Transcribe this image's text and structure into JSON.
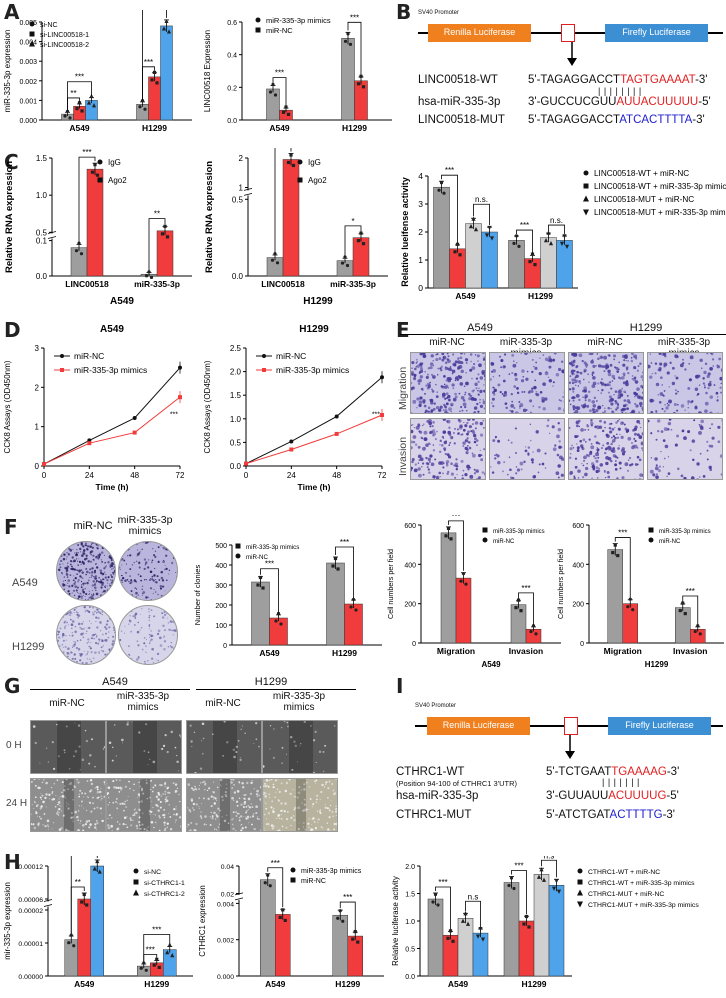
{
  "colors": {
    "gray": "#9e9e9e",
    "red": "#f03c3c",
    "blue": "#4ea3ea",
    "lightgray": "#d0d0d0",
    "black": "#111111",
    "renilla": "#f07f1e",
    "firefly": "#3d8fd3"
  },
  "panel_labels": {
    "A": "A",
    "B": "B",
    "C": "C",
    "D": "D",
    "E": "E",
    "F": "F",
    "G": "G",
    "H": "H",
    "I": "I"
  },
  "panelB": {
    "promoter": "SV40 Promoter",
    "renilla": "Renilla Luciferase",
    "firefly": "Firefly Luciferase",
    "seqs": [
      {
        "name": "LINC00518-WT",
        "pre": "5'-TAGAGGACCT",
        "hl": "TAGTGAAAAT",
        "post": "-3'",
        "hlcolor": "#e02020"
      },
      {
        "name": "hsa-miR-335-3p",
        "pre": "3'-GUCCUCGUU",
        "hl": "AUUACUUUUU",
        "post": "-5'",
        "hlcolor": "#e02020"
      },
      {
        "name": "LINC00518-MUT",
        "pre": "5'-TAGAGGACCT",
        "hl": "ATCACTTTTA",
        "post": "-3'",
        "hlcolor": "#2020d0"
      }
    ],
    "pairs": "| |  | | | | | |"
  },
  "panelI": {
    "promoter": "SV40 Promoter",
    "renilla": "Renilla Luciferase",
    "firefly": "Firefly Luciferase",
    "seqs": [
      {
        "name": "CTHRC1-WT",
        "pre": "5'-TCTGAAT",
        "hl": "TGAAAAG",
        "post": "-3'",
        "hlcolor": "#e02020"
      },
      {
        "name": "hsa-miR-335-3p",
        "pre": "3'-GUUAUU",
        "hl": "ACUUUUG",
        "post": "-5'",
        "hlcolor": "#e02020"
      },
      {
        "name": "CTHRC1-MUT",
        "pre": "5'-ATCTGAT",
        "hl": "ACTTTTG",
        "post": "-3'",
        "hlcolor": "#2020d0"
      }
    ],
    "subnote": "(Position 94-100 of CTHRC1 3'UTR)",
    "pairs": "| | | | | | |"
  },
  "panelE": {
    "headers": [
      "A549",
      "H1299"
    ],
    "sub": [
      "miR-NC",
      "miR-335-3p mimics",
      "miR-NC",
      "miR-335-3p mimics"
    ],
    "rows": [
      "Migration",
      "Invasion"
    ]
  },
  "panelF": {
    "headers": [
      "miR-NC",
      "miR-335-3p\nmimics"
    ],
    "rows": [
      "A549",
      "H1299"
    ]
  },
  "panelG": {
    "headers": [
      "A549",
      "H1299"
    ],
    "sub": [
      "miR-NC",
      "miR-335-3p\nmimics",
      "miR-NC",
      "miR-335-3p\nmimics"
    ],
    "rows": [
      "0 H",
      "24 H"
    ]
  },
  "chart_data": [
    {
      "id": "A1",
      "type": "bar",
      "ylabel": "miR-335-3p expression",
      "categories": [
        "A549",
        "H1299"
      ],
      "ylim": [
        0,
        0.005
      ],
      "yticks": [
        "0.000",
        "0.001",
        "0.002",
        "0.003",
        "0.004",
        "0.005"
      ],
      "series": [
        {
          "name": "si-NC",
          "values": [
            0.0003,
            0.0008
          ]
        },
        {
          "name": "si-LINC00518-1",
          "values": [
            0.0007,
            0.0022
          ]
        },
        {
          "name": "si-LINC00518-2",
          "values": [
            0.001,
            0.0048
          ]
        }
      ],
      "sig": [
        {
          "label": "**"
        },
        {
          "label": "***"
        },
        {
          "label": "***"
        },
        {
          "label": "***"
        }
      ]
    },
    {
      "id": "A2",
      "type": "bar",
      "ylabel": "LINC00518 Expression",
      "categories": [
        "A549",
        "H1299"
      ],
      "ylim": [
        0,
        0.6
      ],
      "yticks": [
        "0.0",
        "0.2",
        "0.4",
        "0.6"
      ],
      "series": [
        {
          "name": "miR-335-3p mimics",
          "values": [
            0.19,
            0.5
          ]
        },
        {
          "name": "miR-NC",
          "values": [
            0.06,
            0.24
          ]
        }
      ],
      "sig": [
        {
          "label": "***"
        },
        {
          "label": "***"
        }
      ]
    },
    {
      "id": "C1",
      "type": "bar",
      "ylabel": "Relative RNA expression",
      "title": "A549",
      "categories": [
        "LINC00518",
        "miR-335-3p"
      ],
      "yticks": [
        "0.0",
        "0.1",
        "0.5",
        "1.0",
        "1.5"
      ],
      "series": [
        {
          "name": "IgG",
          "values": [
            0.08,
            0.005
          ]
        },
        {
          "name": "Ago2",
          "values": [
            1.35,
            0.52
          ]
        }
      ],
      "sig": [
        {
          "label": "***"
        },
        {
          "label": "**"
        }
      ]
    },
    {
      "id": "C2",
      "type": "bar",
      "ylabel": "Relative RNA expression",
      "title": "H1299",
      "categories": [
        "LINC00518",
        "miR-335-3p"
      ],
      "yticks": [
        "0.0",
        "0.5",
        "1",
        "2"
      ],
      "series": [
        {
          "name": "IgG",
          "values": [
            0.12,
            0.1
          ]
        },
        {
          "name": "Ago2",
          "values": [
            1.95,
            0.25
          ]
        }
      ],
      "sig": [
        {
          "label": "***"
        },
        {
          "label": "*"
        }
      ]
    },
    {
      "id": "B2",
      "type": "bar",
      "ylabel": "Relative lueifense activity",
      "categories": [
        "A549",
        "H1299"
      ],
      "ylim": [
        0,
        4
      ],
      "yticks": [
        "0",
        "1",
        "2",
        "3",
        "4"
      ],
      "series": [
        {
          "name": "LINC00518-WT + miR-NC",
          "values": [
            3.6,
            1.7
          ]
        },
        {
          "name": "LINC00518-WT + miR-335-3p mimics",
          "values": [
            1.4,
            1.05
          ]
        },
        {
          "name": "LINC00518-MUT + miR-NC",
          "values": [
            2.3,
            1.8
          ]
        },
        {
          "name": "LINC00518-MUT + miR-335-3p mimics",
          "values": [
            2.0,
            1.7
          ]
        }
      ],
      "sig": [
        {
          "label": "***"
        },
        {
          "label": "n.s."
        },
        {
          "label": "***"
        },
        {
          "label": "n.s."
        }
      ]
    },
    {
      "id": "D1",
      "type": "line",
      "title": "A549",
      "ylabel": "CCK8 Assays (OD450nm)",
      "xlabel": "Time (h)",
      "x": [
        0,
        24,
        48,
        72
      ],
      "ylim": [
        0,
        3
      ],
      "yticks": [
        "0",
        "1",
        "2",
        "3"
      ],
      "xticks": [
        "0",
        "24",
        "48",
        "72"
      ],
      "series": [
        {
          "name": "miR-NC",
          "values": [
            0.05,
            0.65,
            1.22,
            2.5
          ]
        },
        {
          "name": "miR-335-3p mimics",
          "values": [
            0.05,
            0.58,
            0.85,
            1.75
          ]
        }
      ],
      "sig": "***"
    },
    {
      "id": "D2",
      "type": "line",
      "title": "H1299",
      "ylabel": "CCK8 Assays (OD450nm)",
      "xlabel": "Time (h)",
      "x": [
        0,
        24,
        48,
        72
      ],
      "ylim": [
        0,
        2.5
      ],
      "yticks": [
        "0.0",
        "0.5",
        "1.0",
        "1.5",
        "2.0",
        "2.5"
      ],
      "xticks": [
        "0",
        "24",
        "48",
        "72"
      ],
      "series": [
        {
          "name": "miR-NC",
          "values": [
            0.05,
            0.52,
            1.05,
            1.88
          ]
        },
        {
          "name": "miR-335-3p mimics",
          "values": [
            0.05,
            0.35,
            0.68,
            1.08
          ]
        }
      ],
      "sig": "***"
    },
    {
      "id": "F1",
      "type": "bar",
      "ylabel": "Number of clonies",
      "categories": [
        "A549",
        "H1299"
      ],
      "ylim": [
        0,
        500
      ],
      "yticks": [
        "0",
        "100",
        "200",
        "300",
        "400",
        "500"
      ],
      "series": [
        {
          "name": "miR-335-3p mimics",
          "values": [
            315,
            410
          ]
        },
        {
          "name": "miR-NC",
          "values": [
            135,
            205
          ]
        }
      ],
      "sig": [
        {
          "label": "***"
        },
        {
          "label": "***"
        }
      ]
    },
    {
      "id": "F2",
      "type": "bar",
      "ylabel": "Cell numbers per field",
      "xtitle": "A549",
      "categories": [
        "Migration",
        "Invasion"
      ],
      "ylim": [
        0,
        600
      ],
      "yticks": [
        "0",
        "200",
        "400",
        "600"
      ],
      "series": [
        {
          "name": "miR-335-3p mimics",
          "values": [
            560,
            195
          ]
        },
        {
          "name": "miR-NC",
          "values": [
            330,
            70
          ]
        }
      ],
      "sig": [
        {
          "label": "***"
        },
        {
          "label": "***"
        }
      ]
    },
    {
      "id": "F3",
      "type": "bar",
      "ylabel": "Cell numbers per field",
      "xtitle": "H1299",
      "categories": [
        "Migration",
        "Invasion"
      ],
      "ylim": [
        0,
        600
      ],
      "yticks": [
        "0",
        "200",
        "400",
        "600"
      ],
      "series": [
        {
          "name": "miR-335-3p mimics",
          "values": [
            475,
            180
          ]
        },
        {
          "name": "miR-NC",
          "values": [
            200,
            70
          ]
        }
      ],
      "sig": [
        {
          "label": "***"
        },
        {
          "label": "***"
        }
      ]
    },
    {
      "id": "H1",
      "type": "bar",
      "ylabel": "mir-335-3p expression",
      "categories": [
        "A549",
        "H1299"
      ],
      "yticks": [
        "0.00000",
        "0.00001",
        "0.00002",
        "0.00006",
        "0.00012"
      ],
      "series": [
        {
          "name": "si-NC",
          "values": [
            1.1e-05,
            3e-06
          ]
        },
        {
          "name": "si-CTHRC1-1",
          "values": [
            6e-05,
            4e-06
          ]
        },
        {
          "name": "si-CTHRC1-2",
          "values": [
            0.00012,
            8e-06
          ]
        }
      ],
      "sig": [
        {
          "label": "**"
        },
        {
          "label": "***"
        },
        {
          "label": "***"
        },
        {
          "label": "***"
        }
      ]
    },
    {
      "id": "H2",
      "type": "bar",
      "ylabel": "CTHRC1 expression",
      "categories": [
        "A549",
        "H1299"
      ],
      "yticks": [
        "0.000",
        "0.002",
        "0.004",
        "0.02",
        "0.04"
      ],
      "series": [
        {
          "name": "miR-335-3p mimics",
          "values": [
            0.03,
            0.0042
          ]
        },
        {
          "name": "miR-NC",
          "values": [
            0.0048,
            0.0022
          ]
        }
      ],
      "sig": [
        {
          "label": "***"
        },
        {
          "label": "***"
        }
      ]
    },
    {
      "id": "H3",
      "type": "bar",
      "ylabel": "Relative luciferase activity",
      "categories": [
        "A549",
        "H1299"
      ],
      "ylim": [
        0,
        2
      ],
      "yticks": [
        "0.0",
        "0.5",
        "1.0",
        "1.5",
        "2.0"
      ],
      "series": [
        {
          "name": "CTHRC1-WT + miR-NC",
          "values": [
            1.4,
            1.7
          ]
        },
        {
          "name": "CTHRC1-WT + miR-335-3p mimics",
          "values": [
            0.74,
            1.0
          ]
        },
        {
          "name": "CTHRC1-MUT + miR-NC",
          "values": [
            1.05,
            1.85
          ]
        },
        {
          "name": "CTHRC1-MUT + miR-335-3p mimics",
          "values": [
            0.78,
            1.65
          ]
        }
      ],
      "sig": [
        {
          "label": "***"
        },
        {
          "label": "n.s"
        },
        {
          "label": "***"
        },
        {
          "label": "n.s"
        }
      ]
    }
  ]
}
